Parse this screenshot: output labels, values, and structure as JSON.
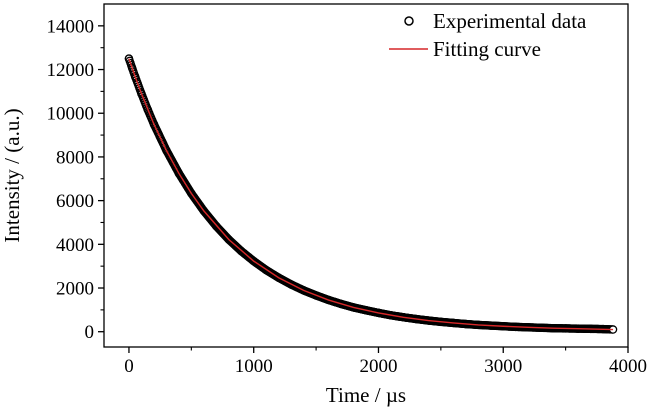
{
  "chart_data": {
    "type": "scatter",
    "title": "",
    "xlabel": "Time / µs",
    "ylabel": "Intensity / (a.u.)",
    "xlim": [
      -200,
      4000
    ],
    "ylim": [
      -700,
      15000
    ],
    "x_ticks": [
      0,
      1000,
      2000,
      3000,
      4000
    ],
    "y_ticks": [
      0,
      2000,
      4000,
      6000,
      8000,
      10000,
      12000,
      14000
    ],
    "x_tick_labels": [
      "0",
      "1000",
      "2000",
      "3000",
      "4000"
    ],
    "y_tick_labels": [
      "0",
      "2000",
      "4000",
      "6000",
      "8000",
      "10000",
      "12000",
      "14000"
    ],
    "grid": false,
    "legend_position": "top-right",
    "series": [
      {
        "name": "Experimental data",
        "kind": "scatter",
        "marker": "open-circle",
        "color": "#000000",
        "x": [
          0,
          25,
          50,
          100,
          150,
          200,
          300,
          400,
          500,
          600,
          700,
          800,
          900,
          1000,
          1100,
          1200,
          1300,
          1400,
          1500,
          1600,
          1700,
          1800,
          1900,
          2000,
          2100,
          2200,
          2300,
          2400,
          2500,
          2600,
          2700,
          2800,
          2900,
          3000,
          3100,
          3200,
          3300,
          3400,
          3500,
          3600,
          3700,
          3800,
          3880
        ],
        "y": [
          12500,
          12080,
          11670,
          10900,
          10170,
          9500,
          8300,
          7250,
          6330,
          5530,
          4830,
          4220,
          3690,
          3230,
          2820,
          2470,
          2160,
          1890,
          1660,
          1450,
          1270,
          1110,
          980,
          860,
          750,
          660,
          580,
          510,
          450,
          400,
          350,
          310,
          280,
          250,
          220,
          200,
          180,
          160,
          150,
          140,
          130,
          120,
          100
        ]
      },
      {
        "name": "Fitting curve",
        "kind": "line",
        "color": "#d62728",
        "x": [
          0,
          50,
          100,
          200,
          300,
          400,
          500,
          600,
          800,
          1000,
          1200,
          1400,
          1600,
          1800,
          2000,
          2200,
          2400,
          2600,
          2800,
          3000,
          3200,
          3400,
          3600,
          3880
        ],
        "y": [
          12500,
          11670,
          10900,
          9500,
          8300,
          7250,
          6330,
          5530,
          4220,
          3230,
          2470,
          1890,
          1450,
          1110,
          860,
          660,
          510,
          400,
          310,
          250,
          200,
          160,
          140,
          100
        ]
      }
    ]
  }
}
